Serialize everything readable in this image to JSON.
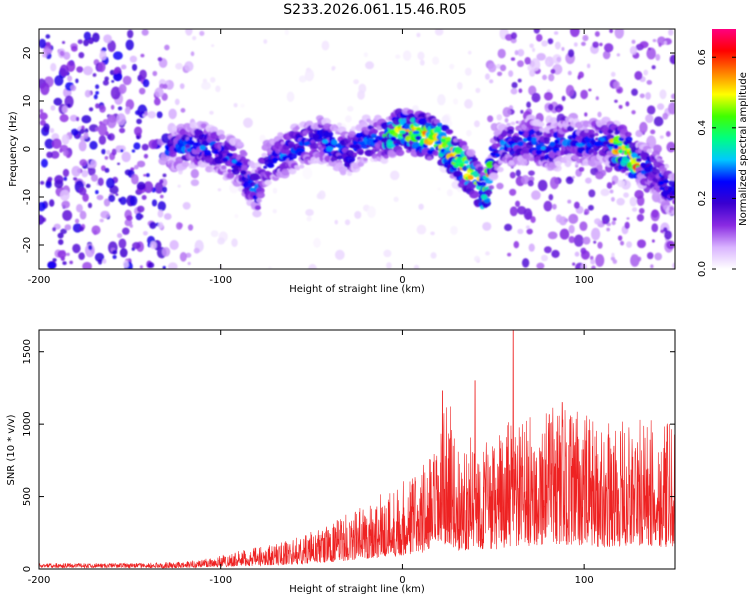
{
  "title": "S233.2026.061.15.46.R05",
  "chart_data": [
    {
      "type": "heatmap",
      "title": "S233.2026.061.15.46.R05",
      "xlabel": "Height of straight line (km)",
      "ylabel": "Frequency (Hz)",
      "xlim": [
        -200,
        150
      ],
      "ylim": [
        -25,
        25
      ],
      "x_ticks": [
        -200,
        -100,
        0,
        100
      ],
      "x_tick_labels": [
        "-200",
        "-100",
        "0",
        "100"
      ],
      "y_ticks": [
        -20,
        -10,
        0,
        10,
        20
      ],
      "y_tick_labels": [
        "-20",
        "-10",
        "0",
        "10",
        "20"
      ],
      "colorbar": {
        "label": "Normalized spectral amplitude",
        "range": [
          0,
          0.68
        ],
        "ticks": [
          0.0,
          0.2,
          0.4,
          0.6
        ],
        "tick_labels": [
          "0.0",
          "0.2",
          "0.4",
          "0.6"
        ],
        "colors": [
          "#ffffff",
          "#d9b3ff",
          "#8a2be2",
          "#3a00d0",
          "#0000ff",
          "#00c8ff",
          "#00ff80",
          "#40ff00",
          "#ffff00",
          "#ff8000",
          "#ff0000",
          "#ff0080"
        ]
      },
      "ridge": {
        "description": "strong ridge following the frequency trend",
        "x": [
          -125,
          -110,
          -100,
          -90,
          -80,
          -75,
          -60,
          -45,
          -30,
          -20,
          -10,
          0,
          10,
          20,
          30,
          40,
          45,
          50,
          55,
          60,
          70,
          80,
          90,
          100,
          110,
          120,
          130,
          140,
          150
        ],
        "y": [
          0,
          1,
          -1,
          -3,
          -9,
          -3,
          0,
          2,
          -1,
          2,
          2,
          4,
          3,
          2,
          -2,
          -6,
          -10,
          -2,
          1,
          1,
          2,
          0,
          2,
          1,
          2,
          0,
          -3,
          -5,
          -10
        ]
      },
      "noise_regions": [
        {
          "x_from": -200,
          "x_to": -130,
          "y_from": -25,
          "y_to": 25,
          "level": 0.14
        },
        {
          "x_from": 58,
          "x_to": 150,
          "y_from": -25,
          "y_to": 25,
          "level": 0.1
        }
      ]
    },
    {
      "type": "line",
      "xlabel": "Height of straight line (km)",
      "ylabel": "SNR (10 * v/v)",
      "xlim": [
        -200,
        150
      ],
      "ylim": [
        0,
        1650
      ],
      "x_ticks": [
        -200,
        -100,
        0,
        100
      ],
      "x_tick_labels": [
        "-200",
        "-100",
        "0",
        "100"
      ],
      "y_ticks": [
        0,
        500,
        1000,
        1500
      ],
      "y_tick_labels": [
        "0",
        "500",
        "1000",
        "1500"
      ],
      "color": "#ee2222",
      "envelope": {
        "x": [
          -200,
          -150,
          -120,
          -100,
          -80,
          -60,
          -40,
          -20,
          0,
          10,
          20,
          25,
          30,
          40,
          50,
          58,
          62,
          70,
          80,
          90,
          100,
          110,
          120,
          130,
          140,
          150
        ],
        "y": [
          40,
          40,
          50,
          100,
          150,
          210,
          310,
          460,
          620,
          720,
          860,
          1250,
          820,
          940,
          870,
          1020,
          1000,
          1050,
          1150,
          1120,
          1080,
          1000,
          1020,
          1050,
          1020,
          1000
        ]
      },
      "peaks": [
        {
          "x": 22,
          "y": 1230
        },
        {
          "x": 40,
          "y": 1300
        },
        {
          "x": 61,
          "y": 1650
        },
        {
          "x": 88,
          "y": 1150
        }
      ]
    }
  ]
}
